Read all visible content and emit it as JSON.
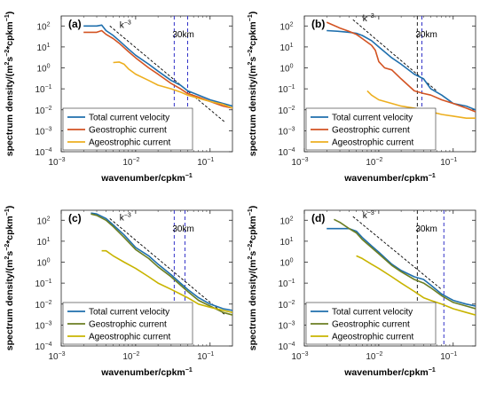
{
  "figure": {
    "xlabel": "wavenumber/cpkm",
    "xlabel_sup": "−1",
    "ylabel_parts": [
      "spectrum density/(m",
      "2",
      "s",
      "−2",
      "*cpkm",
      "−1",
      ")"
    ]
  },
  "chart_data": [
    {
      "type": "line",
      "panel": "(a)",
      "x_scale": "log",
      "y_scale": "log",
      "xlim": [
        0.001,
        0.2
      ],
      "ylim": [
        0.0001,
        300
      ],
      "x_ticks": [
        0.001,
        0.01,
        0.1
      ],
      "y_ticks": [
        0.0001,
        0.001,
        0.01,
        0.1,
        1,
        10,
        100
      ],
      "legend_placement": "bottom-left",
      "annotations": {
        "slope_label": "k",
        "slope_exp": "−3",
        "distance_label": "30km"
      },
      "vlines": [
        {
          "x": 0.033,
          "color": "#3232c8"
        },
        {
          "x": 0.05,
          "color": "#3232c8"
        }
      ],
      "reference_line": {
        "x": [
          0.0045,
          0.16
        ],
        "y": [
          100,
          0.0025
        ]
      },
      "series": [
        {
          "name": "Total current velocity",
          "color": "#1f6fad",
          "x": [
            0.002,
            0.003,
            0.0035,
            0.004,
            0.005,
            0.006,
            0.008,
            0.01,
            0.015,
            0.02,
            0.03,
            0.04,
            0.05,
            0.07,
            0.1,
            0.15,
            0.2
          ],
          "y": [
            100,
            100,
            110,
            60,
            35,
            20,
            8,
            4,
            1.5,
            0.7,
            0.25,
            0.15,
            0.08,
            0.05,
            0.03,
            0.02,
            0.015
          ]
        },
        {
          "name": "Geostrophic current",
          "color": "#d35322",
          "x": [
            0.002,
            0.003,
            0.0035,
            0.004,
            0.005,
            0.006,
            0.008,
            0.01,
            0.015,
            0.02,
            0.03,
            0.04,
            0.05,
            0.07,
            0.1,
            0.15,
            0.2
          ],
          "y": [
            50,
            50,
            60,
            40,
            25,
            15,
            6,
            3,
            1,
            0.5,
            0.18,
            0.1,
            0.06,
            0.04,
            0.025,
            0.015,
            0.012
          ]
        },
        {
          "name": "Ageostrophic current",
          "color": "#edaf20",
          "x": [
            0.005,
            0.006,
            0.007,
            0.008,
            0.01,
            0.015,
            0.02,
            0.03,
            0.04,
            0.05,
            0.07,
            0.1,
            0.15,
            0.2
          ],
          "y": [
            1.8,
            1.9,
            1.5,
            0.9,
            0.5,
            0.25,
            0.15,
            0.1,
            0.07,
            0.05,
            0.035,
            0.025,
            0.018,
            0.012
          ]
        }
      ]
    },
    {
      "type": "line",
      "panel": "(b)",
      "x_scale": "log",
      "y_scale": "log",
      "xlim": [
        0.001,
        0.2
      ],
      "ylim": [
        0.0001,
        300
      ],
      "x_ticks": [
        0.001,
        0.01,
        0.1
      ],
      "y_ticks": [
        0.0001,
        0.001,
        0.01,
        0.1,
        1,
        10,
        100
      ],
      "legend_placement": "bottom-left",
      "annotations": {
        "slope_label": "k",
        "slope_exp": "−3",
        "distance_label": "30km"
      },
      "vlines": [
        {
          "x": 0.033,
          "color": "#222222"
        },
        {
          "x": 0.038,
          "color": "#3232c8"
        }
      ],
      "reference_line": {
        "x": [
          0.0045,
          0.06
        ],
        "y": [
          200,
          0.08
        ]
      },
      "series": [
        {
          "name": "Total current velocity",
          "color": "#1f6fad",
          "x": [
            0.002,
            0.003,
            0.004,
            0.005,
            0.006,
            0.008,
            0.01,
            0.015,
            0.02,
            0.03,
            0.04,
            0.05,
            0.07,
            0.1,
            0.15,
            0.2
          ],
          "y": [
            60,
            55,
            50,
            45,
            35,
            20,
            10,
            3,
            1.5,
            0.5,
            0.3,
            0.1,
            0.05,
            0.02,
            0.015,
            0.01
          ]
        },
        {
          "name": "Geostrophic current",
          "color": "#d35322",
          "x": [
            0.002,
            0.003,
            0.004,
            0.005,
            0.006,
            0.008,
            0.009,
            0.01,
            0.012,
            0.015,
            0.02,
            0.03,
            0.04,
            0.05,
            0.07,
            0.1,
            0.15,
            0.2
          ],
          "y": [
            150,
            80,
            55,
            40,
            25,
            12,
            7,
            2,
            1,
            0.8,
            0.3,
            0.08,
            0.06,
            0.05,
            0.03,
            0.02,
            0.012,
            0.008
          ]
        },
        {
          "name": "Ageostrophic current",
          "color": "#edaf20",
          "x": [
            0.007,
            0.008,
            0.01,
            0.015,
            0.02,
            0.03,
            0.04,
            0.05,
            0.07,
            0.1,
            0.15,
            0.2
          ],
          "y": [
            0.08,
            0.05,
            0.03,
            0.02,
            0.015,
            0.012,
            0.01,
            0.008,
            0.006,
            0.005,
            0.004,
            0.004
          ]
        }
      ]
    },
    {
      "type": "line",
      "panel": "(c)",
      "x_scale": "log",
      "y_scale": "log",
      "xlim": [
        0.001,
        0.2
      ],
      "ylim": [
        0.0001,
        300
      ],
      "x_ticks": [
        0.001,
        0.01,
        0.1
      ],
      "y_ticks": [
        0.0001,
        0.001,
        0.01,
        0.1,
        1,
        10,
        100
      ],
      "legend_placement": "bottom-left",
      "annotations": {
        "slope_label": "k",
        "slope_exp": "−3",
        "distance_label": "30km"
      },
      "vlines": [
        {
          "x": 0.033,
          "color": "#3232c8"
        },
        {
          "x": 0.046,
          "color": "#3232c8"
        }
      ],
      "reference_line": {
        "x": [
          0.0045,
          0.16
        ],
        "y": [
          120,
          0.003
        ]
      },
      "series": [
        {
          "name": "Total current velocity",
          "color": "#1f6fad",
          "x": [
            0.0025,
            0.003,
            0.004,
            0.005,
            0.007,
            0.01,
            0.015,
            0.02,
            0.03,
            0.04,
            0.05,
            0.07,
            0.1,
            0.15,
            0.2
          ],
          "y": [
            220,
            200,
            120,
            60,
            20,
            5,
            2,
            0.8,
            0.25,
            0.1,
            0.05,
            0.02,
            0.01,
            0.006,
            0.005
          ]
        },
        {
          "name": "Geostrophic current",
          "color": "#6b7e23",
          "x": [
            0.0025,
            0.003,
            0.004,
            0.005,
            0.007,
            0.01,
            0.015,
            0.02,
            0.03,
            0.04,
            0.05,
            0.07,
            0.1,
            0.15,
            0.2
          ],
          "y": [
            200,
            170,
            100,
            50,
            15,
            4,
            1.5,
            0.6,
            0.2,
            0.08,
            0.04,
            0.015,
            0.008,
            0.004,
            0.003
          ]
        },
        {
          "name": "Ageostrophic current",
          "color": "#c8b400",
          "x": [
            0.0035,
            0.004,
            0.005,
            0.007,
            0.01,
            0.015,
            0.02,
            0.03,
            0.04,
            0.05,
            0.07,
            0.1,
            0.15,
            0.2
          ],
          "y": [
            3.5,
            3.5,
            2,
            1,
            0.5,
            0.2,
            0.1,
            0.05,
            0.03,
            0.02,
            0.01,
            0.007,
            0.005,
            0.004
          ]
        }
      ]
    },
    {
      "type": "line",
      "panel": "(d)",
      "x_scale": "log",
      "y_scale": "log",
      "xlim": [
        0.001,
        0.2
      ],
      "ylim": [
        0.0001,
        300
      ],
      "x_ticks": [
        0.001,
        0.01,
        0.1
      ],
      "y_ticks": [
        0.0001,
        0.001,
        0.01,
        0.1,
        1,
        10,
        100
      ],
      "legend_placement": "bottom-left",
      "annotations": {
        "slope_label": "k",
        "slope_exp": "−3",
        "distance_label": "30km"
      },
      "vlines": [
        {
          "x": 0.033,
          "color": "#222222"
        },
        {
          "x": 0.075,
          "color": "#3232c8"
        }
      ],
      "reference_line": {
        "x": [
          0.0045,
          0.07
        ],
        "y": [
          150,
          0.05
        ]
      },
      "series": [
        {
          "name": "Total current velocity",
          "color": "#1f6fad",
          "x": [
            0.002,
            0.003,
            0.004,
            0.005,
            0.006,
            0.008,
            0.01,
            0.015,
            0.02,
            0.03,
            0.04,
            0.05,
            0.07,
            0.1,
            0.15,
            0.2
          ],
          "y": [
            40,
            40,
            40,
            30,
            15,
            6,
            3,
            0.8,
            0.4,
            0.2,
            0.15,
            0.08,
            0.03,
            0.015,
            0.01,
            0.008
          ]
        },
        {
          "name": "Geostrophic current",
          "color": "#6b7e23",
          "x": [
            0.0025,
            0.003,
            0.004,
            0.005,
            0.006,
            0.008,
            0.01,
            0.015,
            0.02,
            0.03,
            0.04,
            0.05,
            0.07,
            0.1,
            0.15,
            0.2
          ],
          "y": [
            110,
            80,
            40,
            25,
            12,
            5,
            2.5,
            0.7,
            0.35,
            0.15,
            0.1,
            0.06,
            0.025,
            0.012,
            0.008,
            0.006
          ]
        },
        {
          "name": "Ageostrophic current",
          "color": "#c8b400",
          "x": [
            0.005,
            0.006,
            0.008,
            0.01,
            0.015,
            0.02,
            0.03,
            0.04,
            0.05,
            0.07,
            0.1,
            0.15,
            0.2
          ],
          "y": [
            2,
            1.5,
            0.8,
            0.5,
            0.2,
            0.1,
            0.04,
            0.02,
            0.015,
            0.01,
            0.006,
            0.004,
            0.003
          ]
        }
      ]
    }
  ]
}
